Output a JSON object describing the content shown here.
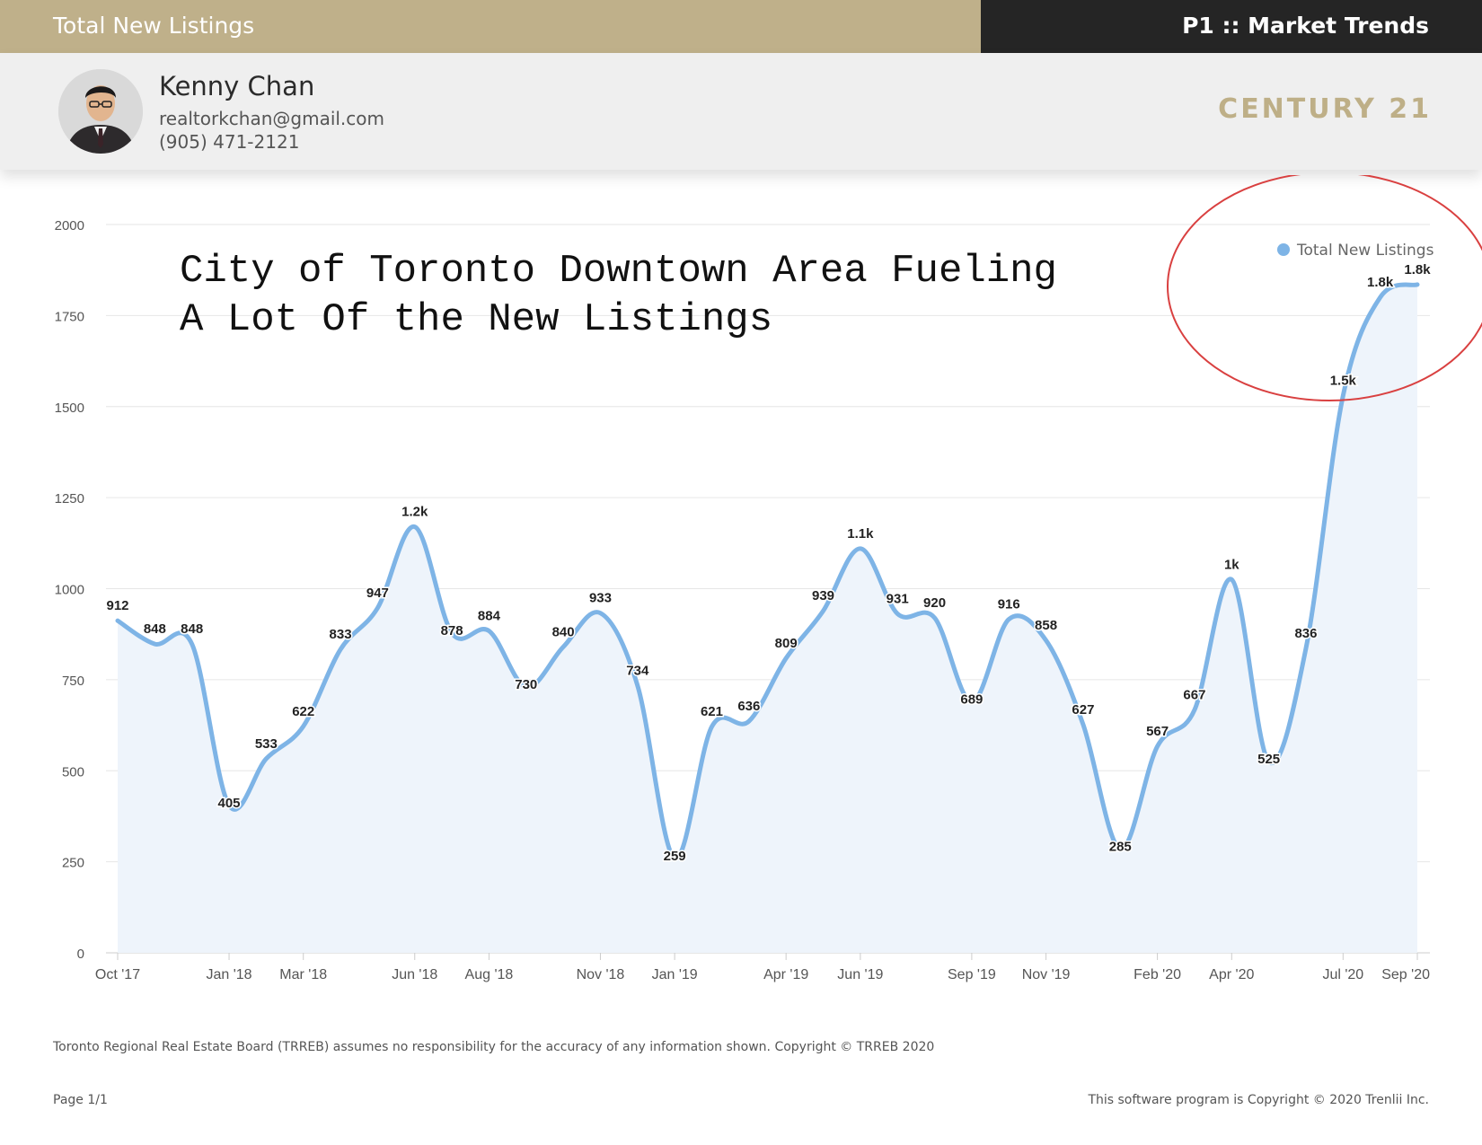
{
  "header": {
    "title": "Total New Listings",
    "section": "P1 :: Market Trends"
  },
  "agent": {
    "name": "Kenny Chan",
    "email": "realtorkchan@gmail.com",
    "phone": "(905) 471-2121"
  },
  "brand": {
    "logo_text": "CENTURY 21"
  },
  "colors": {
    "header_bar": "#bfb08a",
    "header_dark": "#252525",
    "line": "#7eb4e6",
    "area": "#eef4fb",
    "annotation_circle": "#d94040"
  },
  "annotation": {
    "line1": "City of Toronto Downtown Area Fueling",
    "line2": "A Lot Of the New Listings"
  },
  "chart_data": {
    "type": "area",
    "series": [
      {
        "name": "Total New Listings",
        "values": [
          912,
          848,
          848,
          405,
          533,
          622,
          833,
          947,
          1170,
          878,
          884,
          730,
          840,
          933,
          734,
          259,
          621,
          636,
          809,
          939,
          1110,
          931,
          920,
          689,
          916,
          858,
          627,
          285,
          567,
          667,
          1025,
          525,
          836,
          1530,
          1800,
          1835
        ],
        "data_labels": [
          "912",
          "848",
          "848",
          "405",
          "533",
          "622",
          "833",
          "947",
          "1.2k",
          "878",
          "884",
          "730",
          "840",
          "933",
          "734",
          "259",
          "621",
          "636",
          "809",
          "939",
          "1.1k",
          "931",
          "920",
          "689",
          "916",
          "858",
          "627",
          "285",
          "567",
          "667",
          "1k",
          "525",
          "836",
          "1.5k",
          "1.8k",
          "1.8k"
        ]
      }
    ],
    "x_tick_labels": [
      {
        "index": 0,
        "label": "Oct '17"
      },
      {
        "index": 3,
        "label": "Jan '18"
      },
      {
        "index": 5,
        "label": "Mar '18"
      },
      {
        "index": 8,
        "label": "Jun '18"
      },
      {
        "index": 10,
        "label": "Aug '18"
      },
      {
        "index": 13,
        "label": "Nov '18"
      },
      {
        "index": 15,
        "label": "Jan '19"
      },
      {
        "index": 18,
        "label": "Apr '19"
      },
      {
        "index": 20,
        "label": "Jun '19"
      },
      {
        "index": 23,
        "label": "Sep '19"
      },
      {
        "index": 25,
        "label": "Nov '19"
      },
      {
        "index": 28,
        "label": "Feb '20"
      },
      {
        "index": 30,
        "label": "Apr '20"
      },
      {
        "index": 33,
        "label": "Jul '20"
      },
      {
        "index": 35,
        "label": "Sep '20"
      }
    ],
    "y_ticks": [
      0,
      250,
      500,
      750,
      1000,
      1250,
      1500,
      1750,
      2000
    ],
    "ylim": [
      0,
      2000
    ],
    "grid": true,
    "legend": "top-right"
  },
  "footer": {
    "disclaimer": "Toronto Regional Real Estate Board (TRREB) assumes no responsibility for the accuracy of any information shown. Copyright © TRREB 2020",
    "page": "Page 1/1",
    "copyright": "This software program is Copyright © 2020 Trenlii Inc."
  }
}
